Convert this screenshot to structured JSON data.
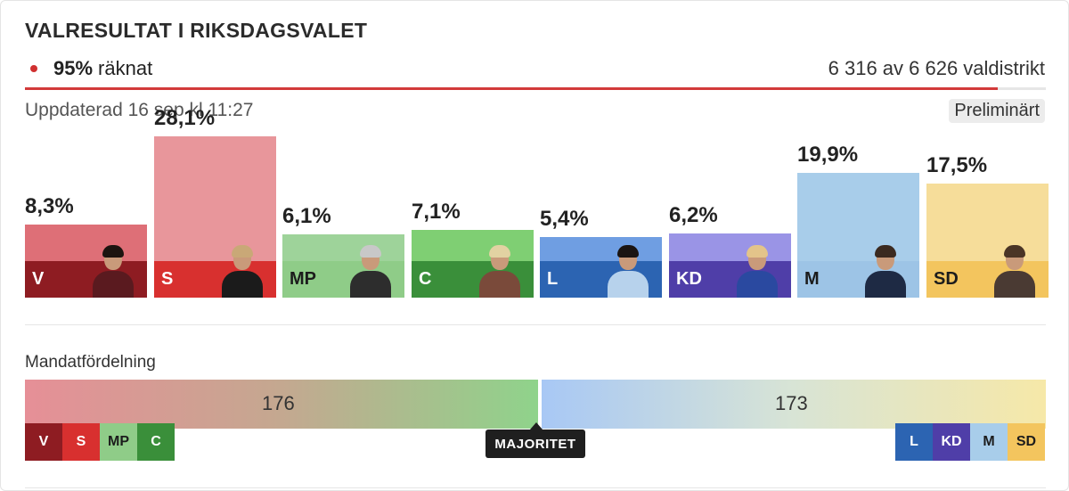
{
  "header": {
    "title": "VALRESULTAT I RIKSDAGSVALET",
    "counted_percent": "95%",
    "counted_label": "räknat",
    "districts": "6 316 av 6 626 valdistrikt",
    "updated": "Uppdaterad 16 sep kl 11:27",
    "status_badge": "Preliminärt",
    "progress": 0.953
  },
  "chart_data": {
    "type": "bar",
    "title": "VALRESULTAT I RIKSDAGSVALET",
    "categories": [
      "V",
      "S",
      "MP",
      "C",
      "L",
      "KD",
      "M",
      "SD"
    ],
    "values": [
      8.3,
      28.1,
      6.1,
      7.1,
      5.4,
      6.2,
      19.9,
      17.5
    ],
    "value_labels": [
      "8,3%",
      "28,1%",
      "6,1%",
      "7,1%",
      "5,4%",
      "6,2%",
      "19,9%",
      "17,5%"
    ],
    "colors": {
      "light": [
        "#de6f77",
        "#e8969b",
        "#9ed39a",
        "#7fcf73",
        "#6f9ee2",
        "#9a94e6",
        "#a8cdea",
        "#f6dd9a"
      ],
      "dark": [
        "#8e1c22",
        "#d8302f",
        "#8fcc88",
        "#3a8f3a",
        "#2c64b2",
        "#4f3ea8",
        "#9dc4e6",
        "#f3c55e"
      ]
    },
    "leader_icons": [
      "leader-v-icon",
      "leader-s-icon",
      "leader-mp-icon",
      "leader-c-icon",
      "leader-l-icon",
      "leader-kd-icon",
      "leader-m-icon",
      "leader-sd-icon"
    ]
  },
  "mandat": {
    "label": "Mandatfördelning",
    "left_seats": "176",
    "right_seats": "173",
    "majority_label": "MAJORITET",
    "left_bloc": [
      {
        "name": "V",
        "bg": "#8e1c22",
        "fg": "#ffffff"
      },
      {
        "name": "S",
        "bg": "#d8302f",
        "fg": "#ffffff"
      },
      {
        "name": "MP",
        "bg": "#8fcc88",
        "fg": "#1c1c1c"
      },
      {
        "name": "C",
        "bg": "#3a8f3a",
        "fg": "#ffffff"
      }
    ],
    "right_bloc": [
      {
        "name": "L",
        "bg": "#2c64b2",
        "fg": "#ffffff"
      },
      {
        "name": "KD",
        "bg": "#4f3ea8",
        "fg": "#ffffff"
      },
      {
        "name": "M",
        "bg": "#a8cdea",
        "fg": "#1c1c1c"
      },
      {
        "name": "SD",
        "bg": "#f3c55e",
        "fg": "#1c1c1c"
      }
    ]
  }
}
